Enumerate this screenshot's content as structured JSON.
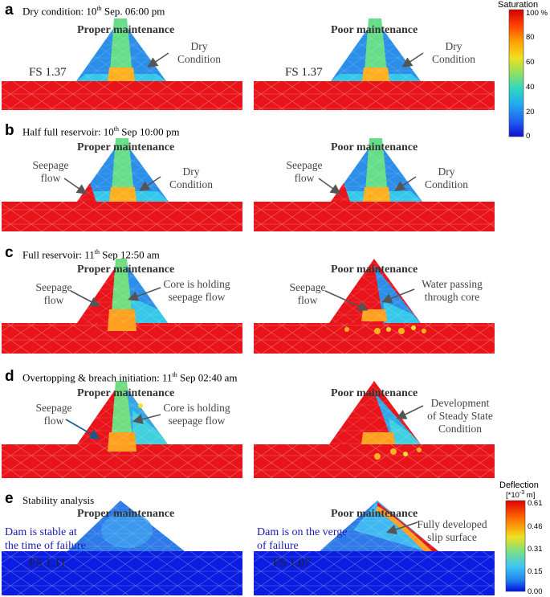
{
  "panels": {
    "a": {
      "letter": "a",
      "title_pre": "Dry condition:  10",
      "title_sup": "th",
      "title_post": " Sep. 06:00 pm",
      "left_sub": "Proper maintenance",
      "right_sub": "Poor maintenance",
      "left_fs": "FS 1.37",
      "right_fs": "FS 1.37",
      "left_ann": [
        "Dry",
        "Condition"
      ],
      "right_ann": [
        "Dry",
        "Condition"
      ]
    },
    "b": {
      "letter": "b",
      "title_pre": "Half full reservoir: 10",
      "title_sup": "th",
      "title_post": " Sep 10:00 pm",
      "left_sub": "Proper maintenance",
      "right_sub": "Poor maintenance",
      "left_seep": [
        "Seepage",
        "flow"
      ],
      "right_seep": [
        "Seepage",
        "flow"
      ],
      "left_ann": [
        "Dry",
        "Condition"
      ],
      "right_ann": [
        "Dry",
        "Condition"
      ]
    },
    "c": {
      "letter": "c",
      "title_pre": "Full reservoir: 11",
      "title_sup": "th",
      "title_post": " Sep 12:50 am",
      "left_sub": "Proper maintenance",
      "right_sub": "Poor maintenance",
      "left_seep": [
        "Seepage",
        "flow"
      ],
      "right_seep": [
        "Seepage",
        "flow"
      ],
      "left_ann": [
        "Core is holding",
        "seepage flow"
      ],
      "right_ann": [
        "Water passing",
        "through core"
      ]
    },
    "d": {
      "letter": "d",
      "title_pre": "Overtopping & breach initiation: 11",
      "title_sup": "th",
      "title_post": " Sep 02:40 am",
      "left_sub": "Proper maintenance",
      "right_sub": "Poor maintenance",
      "left_seep": [
        "Seepage",
        "flow"
      ],
      "left_ann": [
        "Core is holding",
        "seepage flow"
      ],
      "right_ann": [
        "Development",
        "of Steady State",
        "Condition"
      ]
    },
    "e": {
      "letter": "e",
      "title_pre": "Stability analysis",
      "title_sup": "",
      "title_post": "",
      "left_sub": "Proper maintenance",
      "right_sub": "Poor maintenance",
      "left_fs": "FS 1.11",
      "right_fs": "FS 1.07",
      "left_ann": [
        "Dam is stable at",
        "the time of failure"
      ],
      "right_ann": [
        "Dam is on the verge",
        "of failure"
      ],
      "slip": [
        "Fully developed",
        "slip surface"
      ]
    }
  },
  "saturation_bar": {
    "title": "Saturation",
    "ticks": [
      "100 %",
      "80",
      "60",
      "40",
      "20",
      "0"
    ]
  },
  "deflection_bar": {
    "title": "Deflection",
    "unit_pre": "[*10",
    "unit_sup": "-3",
    "unit_post": " m]",
    "ticks": [
      "0.61",
      "0.46",
      "0.31",
      "0.15",
      "0.00"
    ]
  },
  "colors": {
    "red": "#e8141a",
    "blue": "#1f74e0",
    "deep_blue": "#0a1de0",
    "text_blue": "#1b1bb3"
  }
}
